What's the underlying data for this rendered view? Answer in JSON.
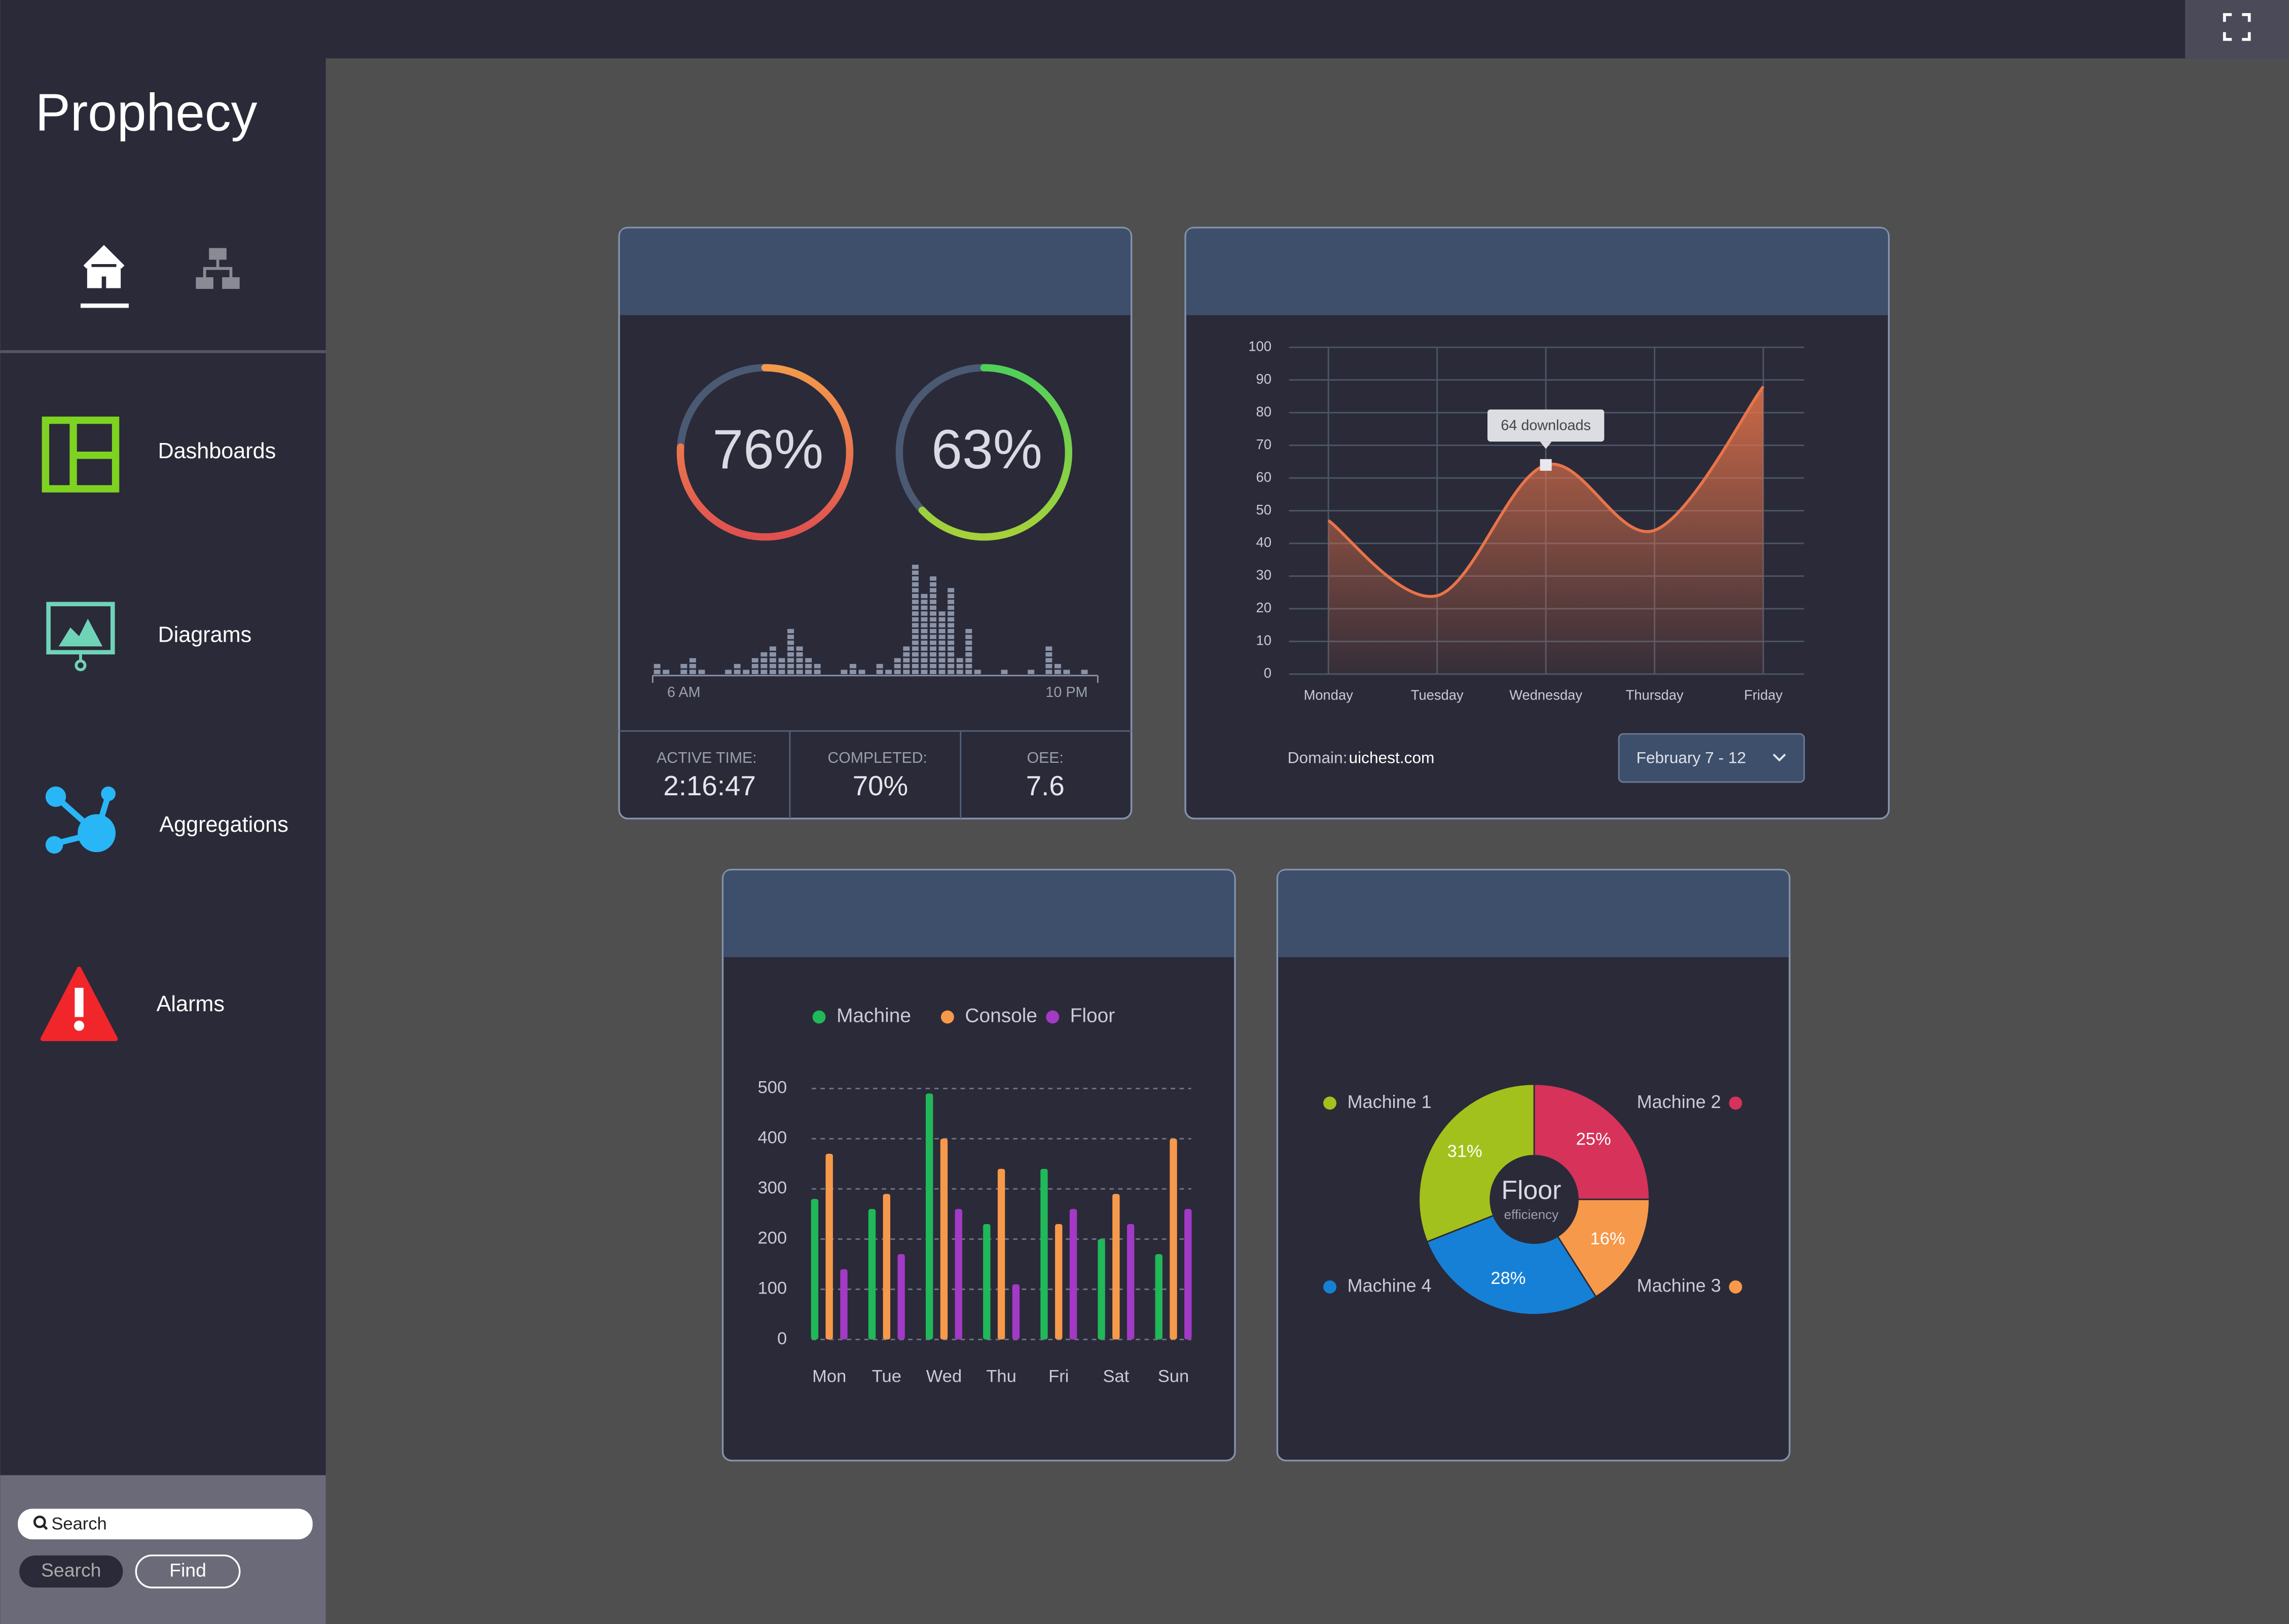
{
  "brand": "Prophecy",
  "nav": [
    "Dashboards",
    "Diagrams",
    "Aggregations",
    "Alarms"
  ],
  "search": {
    "placeholder": "Search",
    "buttons": [
      "Search",
      "Find"
    ]
  },
  "stats": [
    {
      "label": "ACTIVE TIME:",
      "value": "2:16:47"
    },
    {
      "label": "COMPLETED:",
      "value": "70%"
    },
    {
      "label": "OEE:",
      "value": "7.6"
    }
  ],
  "domain": {
    "label": "Domain:",
    "value": "uichest.com"
  },
  "date_range": "February 7 - 12",
  "chart_data": [
    {
      "type": "gauge",
      "values": [
        76,
        63
      ],
      "value_labels": [
        "76%",
        "63%"
      ],
      "colors": [
        [
          "#f39a4b",
          "#e0504f"
        ],
        [
          "#4fd05a",
          "#a6d13a"
        ]
      ],
      "track_color": "#4b5a73"
    },
    {
      "type": "bar",
      "color": "#8a93a8",
      "categories": [
        null,
        null,
        null,
        "6 AM",
        null,
        null,
        null,
        null,
        null,
        null,
        null,
        null,
        null,
        null,
        null,
        null,
        null,
        null,
        null,
        null,
        null,
        null,
        null,
        null,
        null,
        null,
        null,
        null,
        null,
        null,
        null,
        null,
        null,
        null,
        null,
        null,
        null,
        null,
        null,
        null,
        null,
        null,
        null,
        null,
        null,
        null,
        "10 PM",
        null,
        null,
        null
      ],
      "values": [
        2,
        1,
        0,
        2,
        3,
        1,
        0,
        0,
        1,
        2,
        1,
        3,
        4,
        5,
        3,
        8,
        5,
        3,
        2,
        0,
        0,
        1,
        2,
        1,
        0,
        2,
        1,
        3,
        5,
        19,
        14,
        17,
        11,
        15,
        3,
        8,
        1,
        0,
        0,
        1,
        0,
        0,
        1,
        0,
        5,
        2,
        1,
        0,
        1,
        0
      ]
    },
    {
      "type": "area",
      "color": "#e8744a",
      "categories": [
        "Monday",
        "Tuesday",
        "Wednesday",
        "Thursday",
        "Friday"
      ],
      "values": [
        47,
        24,
        64,
        44,
        88
      ],
      "annotation": "64 downloads",
      "ylim": [
        0,
        100
      ],
      "yticks": [
        0,
        10,
        20,
        30,
        40,
        50,
        60,
        70,
        80,
        90,
        100
      ],
      "grid": true
    },
    {
      "type": "bar",
      "categories": [
        "Mon",
        "Tue",
        "Wed",
        "Thu",
        "Fri",
        "Sat",
        "Sun"
      ],
      "series": [
        {
          "name": "Machine",
          "color": "#20b858",
          "values": [
            280,
            260,
            490,
            230,
            340,
            200,
            170
          ]
        },
        {
          "name": "Console",
          "color": "#f7994a",
          "values": [
            370,
            290,
            400,
            340,
            230,
            290,
            400
          ]
        },
        {
          "name": "Floor",
          "color": "#a23ac6",
          "values": [
            140,
            170,
            260,
            110,
            260,
            230,
            260
          ]
        }
      ],
      "ylim": [
        0,
        500
      ],
      "yticks": [
        0,
        100,
        200,
        300,
        400,
        500
      ],
      "grid": true,
      "legend": "top"
    },
    {
      "type": "donut",
      "title": "Floor",
      "subtitle": "efficiency",
      "categories": [
        "Machine 1",
        "Machine 2",
        "Machine 3",
        "Machine 4"
      ],
      "values": [
        31,
        25,
        16,
        28
      ],
      "value_labels": [
        "31%",
        "25%",
        "16%",
        "28%"
      ],
      "colors": [
        "#a2c11c",
        "#d6325a",
        "#f7994a",
        "#1680d6"
      ]
    }
  ]
}
